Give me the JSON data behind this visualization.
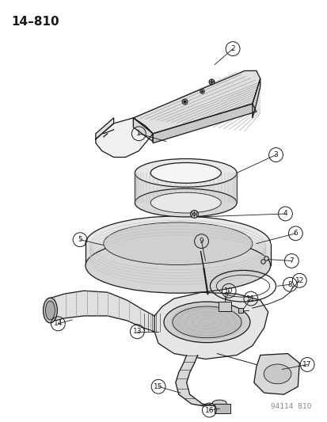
{
  "title_code": "14–810",
  "footer_code": "94114  810",
  "background_color": "#ffffff",
  "line_color": "#1a1a1a",
  "fig_width": 4.14,
  "fig_height": 5.33,
  "dpi": 100
}
